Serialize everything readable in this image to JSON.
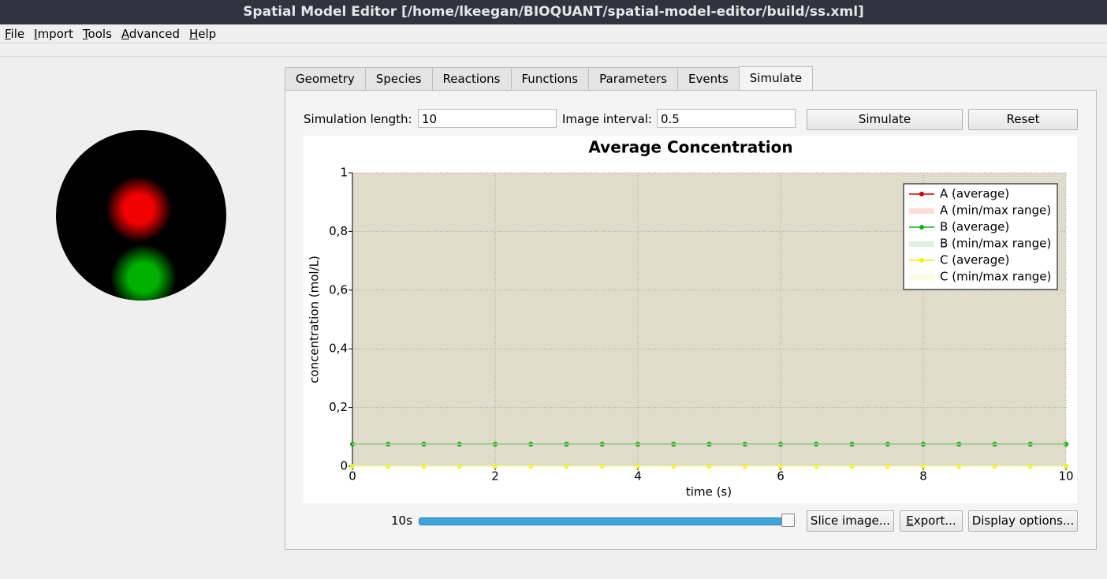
{
  "window": {
    "title": "Spatial Model Editor [/home/lkeegan/BIOQUANT/spatial-model-editor/build/ss.xml]"
  },
  "menu": [
    "File",
    "Import",
    "Tools",
    "Advanced",
    "Help"
  ],
  "tabs": [
    "Geometry",
    "Species",
    "Reactions",
    "Functions",
    "Parameters",
    "Events",
    "Simulate"
  ],
  "controls": {
    "simulation_length_label": "Simulation length:",
    "simulation_length": "10",
    "image_interval_label": "Image interval:",
    "image_interval": "0.5",
    "simulate_button": "Simulate",
    "reset_button": "Reset",
    "time_label": "10s",
    "slice_button": "Slice image...",
    "export_button": "Export...",
    "display_button": "Display options..."
  },
  "chart_data": {
    "type": "line",
    "title": "Average Concentration",
    "x_label": "time (s)",
    "y_label": "concentration (mol/L)",
    "x": [
      0,
      0.5,
      1,
      1.5,
      2,
      2.5,
      3,
      3.5,
      4,
      4.5,
      5,
      5.5,
      6,
      6.5,
      7,
      7.5,
      8,
      8.5,
      9,
      9.5,
      10
    ],
    "xlim": [
      0,
      10
    ],
    "xticks": [
      0,
      2,
      4,
      6,
      8,
      10
    ],
    "ylim": [
      0,
      1
    ],
    "yticks": [
      0,
      {
        "value": 0.2,
        "label": "0,2"
      },
      {
        "value": 0.4,
        "label": "0,4"
      },
      {
        "value": 0.6,
        "label": "0,6"
      },
      {
        "value": 0.8,
        "label": "0,8"
      },
      1
    ],
    "grid": true,
    "legend": "top-right",
    "series": [
      {
        "name": "A (average)",
        "color": "#d40000",
        "values": [
          0.075,
          0.075,
          0.075,
          0.075,
          0.075,
          0.075,
          0.075,
          0.075,
          0.075,
          0.075,
          0.075,
          0.075,
          0.075,
          0.075,
          0.075,
          0.075,
          0.075,
          0.075,
          0.075,
          0.075,
          0.075
        ]
      },
      {
        "name": "A (min/max range)",
        "color": "#ffdcdc",
        "min": [
          0.075,
          0.075,
          0.075,
          0.075,
          0.075,
          0.075,
          0.075,
          0.075,
          0.075,
          0.075,
          0.075,
          0.075,
          0.075,
          0.075,
          0.075,
          0.075,
          0.075,
          0.075,
          0.075,
          0.075,
          0.075
        ],
        "max": [
          0.075,
          0.075,
          0.075,
          0.075,
          0.075,
          0.075,
          0.075,
          0.075,
          0.075,
          0.075,
          0.075,
          0.075,
          0.075,
          0.075,
          0.075,
          0.075,
          0.075,
          0.075,
          0.075,
          0.075,
          0.075
        ]
      },
      {
        "name": "B (average)",
        "color": "#12b312",
        "values": [
          0.075,
          0.075,
          0.075,
          0.075,
          0.075,
          0.075,
          0.075,
          0.075,
          0.075,
          0.075,
          0.075,
          0.075,
          0.075,
          0.075,
          0.075,
          0.075,
          0.075,
          0.075,
          0.075,
          0.075,
          0.075
        ]
      },
      {
        "name": "B (min/max range)",
        "color": "#dcf2dc",
        "min": [
          0.075,
          0.075,
          0.075,
          0.075,
          0.075,
          0.075,
          0.075,
          0.075,
          0.075,
          0.075,
          0.075,
          0.075,
          0.075,
          0.075,
          0.075,
          0.075,
          0.075,
          0.075,
          0.075,
          0.075,
          0.075
        ],
        "max": [
          0.075,
          0.075,
          0.075,
          0.075,
          0.075,
          0.075,
          0.075,
          0.075,
          0.075,
          0.075,
          0.075,
          0.075,
          0.075,
          0.075,
          0.075,
          0.075,
          0.075,
          0.075,
          0.075,
          0.075,
          0.075
        ]
      },
      {
        "name": "C (average)",
        "color": "#f0f000",
        "values": [
          0,
          0,
          0,
          0,
          0,
          0,
          0,
          0,
          0,
          0,
          0,
          0,
          0,
          0,
          0,
          0,
          0,
          0,
          0,
          0,
          0
        ]
      },
      {
        "name": "C (min/max range)",
        "color": "#fdfde0",
        "min": [
          0,
          0,
          0,
          0,
          0,
          0,
          0,
          0,
          0,
          0,
          0,
          0,
          0,
          0,
          0,
          0,
          0,
          0,
          0,
          0,
          0
        ],
        "max": [
          0,
          0,
          0,
          0,
          0,
          0,
          0,
          0,
          0,
          0,
          0,
          0,
          0,
          0,
          0,
          0,
          0,
          0,
          0,
          0,
          0
        ]
      }
    ]
  }
}
